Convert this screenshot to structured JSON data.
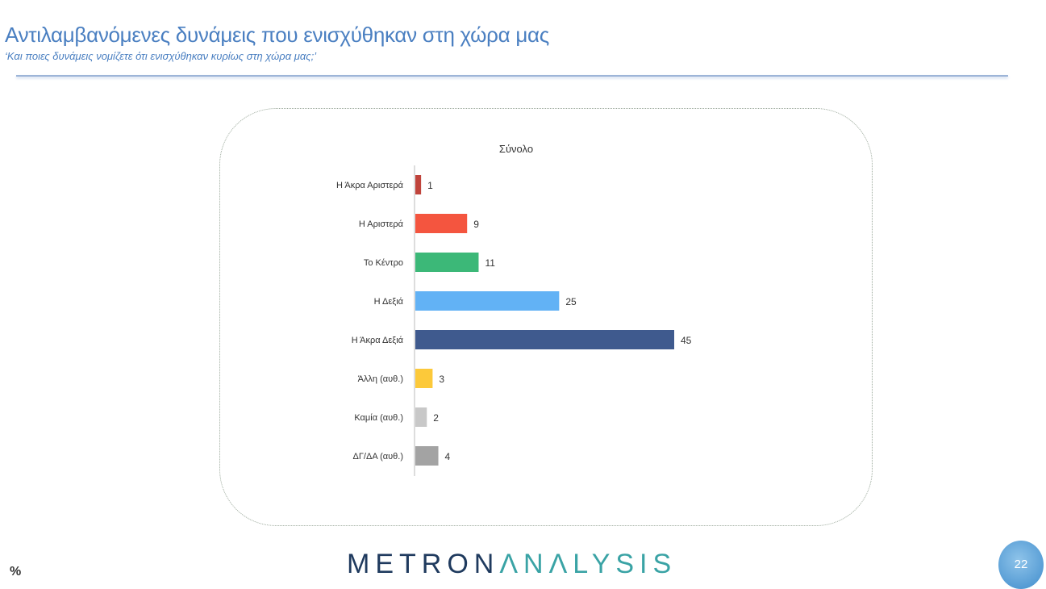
{
  "header": {
    "title": "Αντιλαμβανόμενες δυνάμεις που ενισχύθηκαν στη χώρα μας",
    "subtitle": "‘Και ποιες δυνάμεις νομίζετε ότι ενισχύθηκαν κυρίως στη χώρα μας;’"
  },
  "footer": {
    "unit": "%",
    "logo_part1": "METRON",
    "logo_part2": "ΛNΛLYSIS",
    "page_number": "22"
  },
  "chart_data": {
    "type": "bar",
    "orientation": "horizontal",
    "title": "Σύνολο",
    "xlim": [
      0,
      45
    ],
    "grid": false,
    "categories": [
      "Η Άκρα Αριστερά",
      "Η Αριστερά",
      "Το Κέντρο",
      "Η Δεξιά",
      "Η Άκρα Δεξιά",
      "Άλλη (αυθ.)",
      "Καμία (αυθ.)",
      "ΔΓ/ΔΑ (αυθ.)"
    ],
    "values": [
      1,
      9,
      11,
      25,
      45,
      3,
      2,
      4
    ],
    "colors": [
      "#c0443c",
      "#f4553f",
      "#3cb878",
      "#62b2f5",
      "#3f5a8e",
      "#fcc93a",
      "#c8c8c8",
      "#a3a3a3"
    ]
  }
}
